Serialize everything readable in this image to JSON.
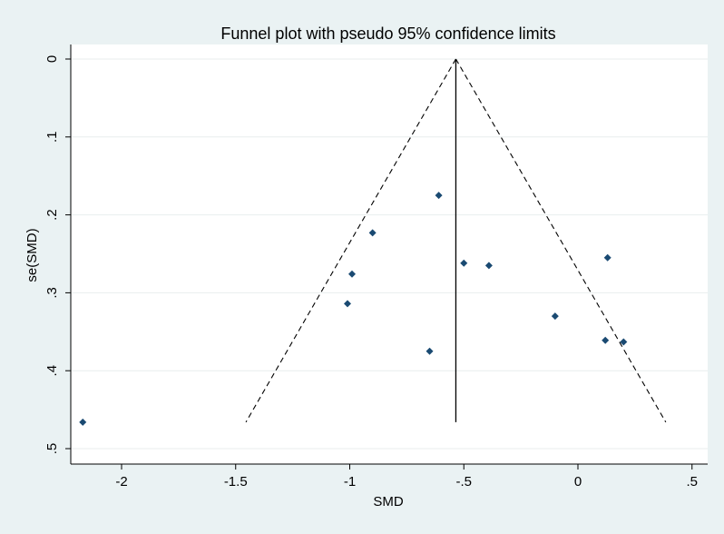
{
  "chart_data": {
    "type": "scatter",
    "title": "Funnel plot with pseudo 95% confidence limits",
    "xlabel": "SMD",
    "ylabel": "se(SMD)",
    "xlim": [
      -2.25,
      0.52
    ],
    "ylim": [
      0,
      0.5
    ],
    "y_reversed": true,
    "x_ticks": [
      -2,
      -1.5,
      -1,
      -0.5,
      0,
      0.5
    ],
    "x_tick_labels": [
      "-2",
      "-1.5",
      "-1",
      "-.5",
      "0",
      ".5"
    ],
    "y_ticks": [
      0,
      0.1,
      0.2,
      0.3,
      0.4,
      0.5
    ],
    "y_tick_labels": [
      "0",
      ".1",
      ".2",
      ".3",
      ".4",
      ".5"
    ],
    "grid": true,
    "pooled_estimate": -0.535,
    "funnel_limits": {
      "se_max": 0.466,
      "lower": -1.455,
      "upper": 0.385
    },
    "points": [
      {
        "x": -2.17,
        "y": 0.466
      },
      {
        "x": -0.61,
        "y": 0.175
      },
      {
        "x": -0.9,
        "y": 0.223
      },
      {
        "x": -0.99,
        "y": 0.276
      },
      {
        "x": -1.01,
        "y": 0.314
      },
      {
        "x": -0.65,
        "y": 0.375
      },
      {
        "x": -0.5,
        "y": 0.262
      },
      {
        "x": -0.39,
        "y": 0.265
      },
      {
        "x": -0.1,
        "y": 0.33
      },
      {
        "x": 0.13,
        "y": 0.255
      },
      {
        "x": 0.12,
        "y": 0.361
      },
      {
        "x": 0.2,
        "y": 0.363
      }
    ],
    "colors": {
      "background": "#eaf2f3",
      "plot_area": "#ffffff",
      "grid": "#e8eeee",
      "marker": "#1a4a72",
      "line": "#000000"
    }
  }
}
